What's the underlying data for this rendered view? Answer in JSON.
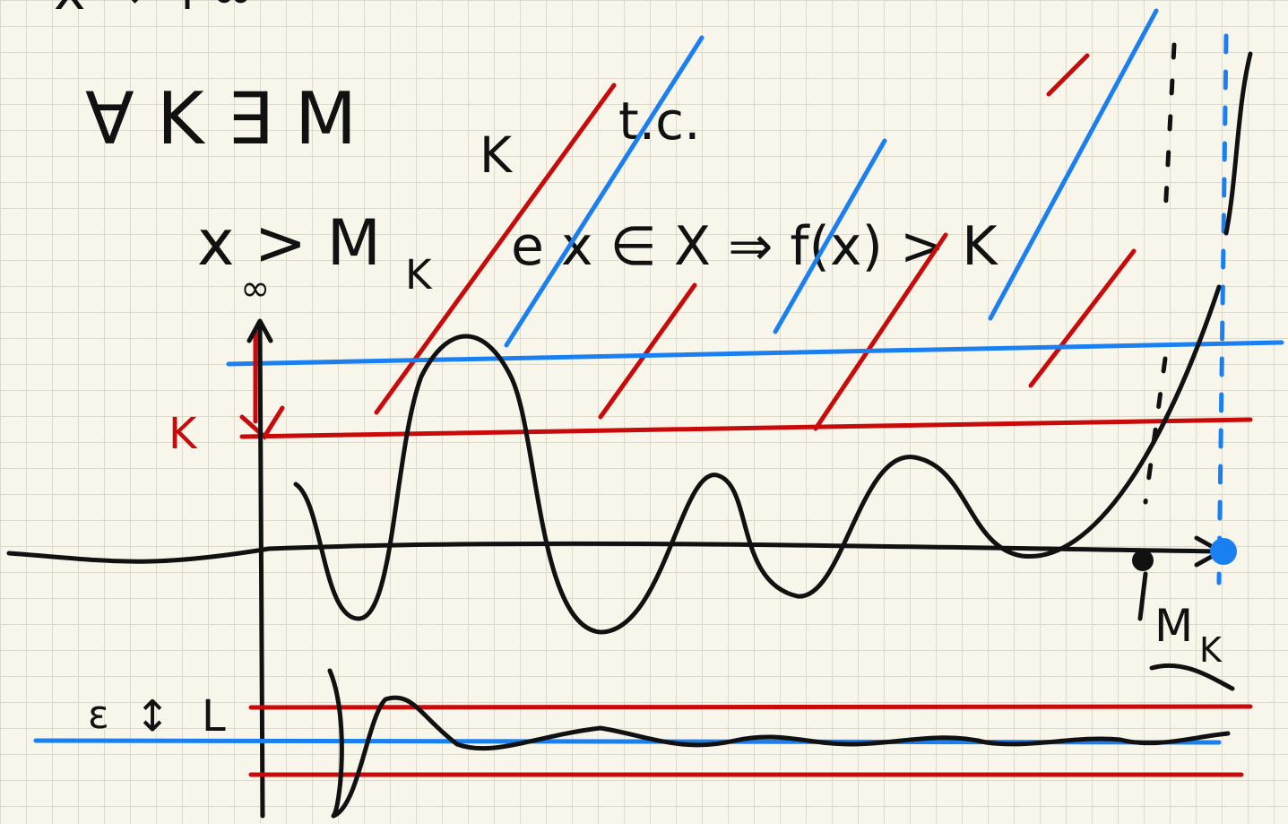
{
  "header": {
    "partial_line": "x → +∞"
  },
  "statement": {
    "quantifiers": "∀ K  ∃ M",
    "quantifiers_subscript": "K",
    "such_that": "t.c.",
    "condition_start": "x > M",
    "condition_subscript": "K",
    "condition_rest": "e  x ∈ X ⇒ f(x) > K"
  },
  "sketch": {
    "infinity_label": "∞",
    "k_label": "K",
    "epsilon_label": "ε",
    "epsilon_arrow": "↕",
    "l_label": "L",
    "m_label": "M",
    "m_subscript": "K"
  }
}
